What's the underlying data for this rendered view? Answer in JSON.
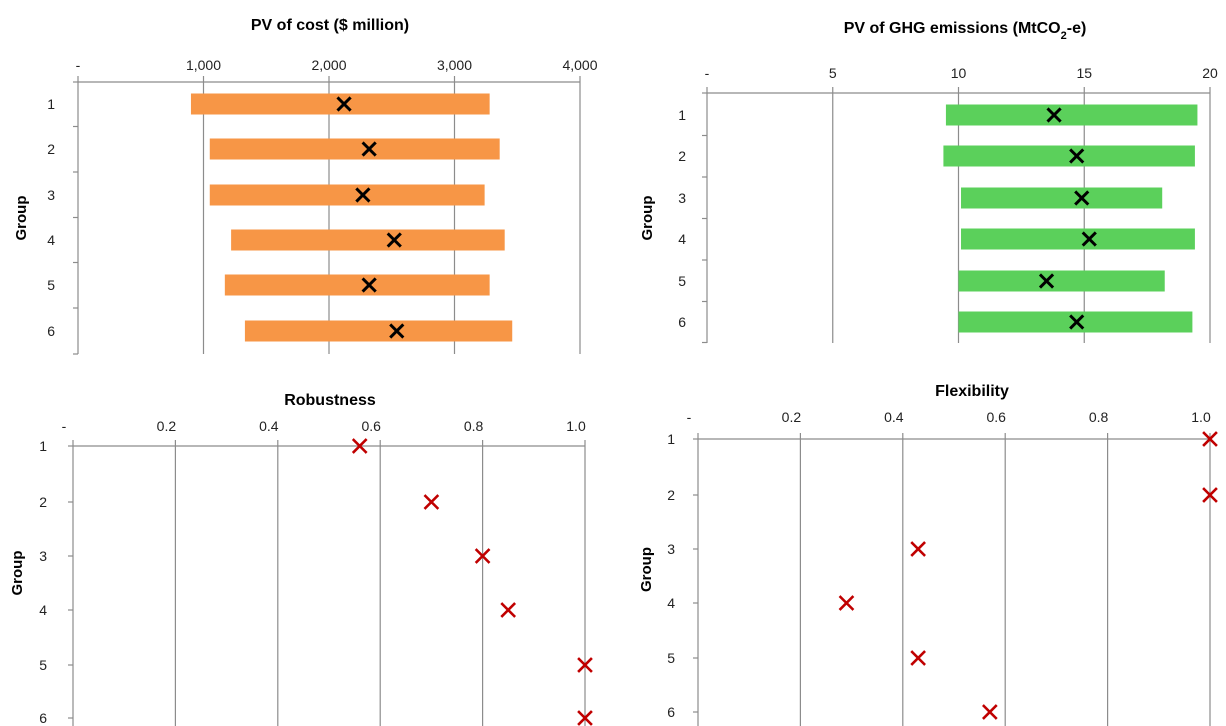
{
  "chart_data": [
    {
      "type": "bar",
      "variant": "range-bar-with-marker",
      "title": "PV of cost ($ million)",
      "title_sub": "",
      "ylabel": "Group",
      "categories": [
        "1",
        "2",
        "3",
        "4",
        "5",
        "6"
      ],
      "x_ticks": [
        "-",
        "1,000",
        "2,000",
        "3,000",
        "4,000"
      ],
      "xlim": [
        0,
        4000
      ],
      "bar_color": "#f79646",
      "marker_color": "#000000",
      "range_low": [
        900,
        1050,
        1050,
        1220,
        1170,
        1330
      ],
      "range_high": [
        3280,
        3360,
        3240,
        3400,
        3280,
        3460
      ],
      "marker": [
        2120,
        2320,
        2270,
        2520,
        2320,
        2540
      ],
      "grid": true
    },
    {
      "type": "bar",
      "variant": "range-bar-with-marker",
      "title": "PV of GHG emissions  (MtCO",
      "title_sub": "2",
      "title_tail": "-e)",
      "ylabel": "Group",
      "categories": [
        "1",
        "2",
        "3",
        "4",
        "5",
        "6"
      ],
      "x_ticks": [
        "-",
        "5",
        "10",
        "15",
        "20"
      ],
      "xlim": [
        0,
        20
      ],
      "bar_color": "#5bd05b",
      "marker_color": "#000000",
      "range_low": [
        9.5,
        9.4,
        10.1,
        10.1,
        10.0,
        10.0
      ],
      "range_high": [
        19.5,
        19.4,
        18.1,
        19.4,
        18.2,
        19.3
      ],
      "marker": [
        13.8,
        14.7,
        14.9,
        15.2,
        13.5,
        14.7
      ],
      "grid": true
    },
    {
      "type": "scatter",
      "title": "Robustness",
      "title_sub": "",
      "ylabel": "Group",
      "categories": [
        "1",
        "2",
        "3",
        "4",
        "5",
        "6"
      ],
      "x_ticks": [
        "-",
        "0.2",
        "0.4",
        "0.6",
        "0.8",
        "1.0"
      ],
      "xlim": [
        0,
        1.0
      ],
      "marker_color": "#c00000",
      "values": [
        0.56,
        0.7,
        0.8,
        0.85,
        1.0,
        1.0
      ],
      "grid": true
    },
    {
      "type": "scatter",
      "title": "Flexibility",
      "title_sub": "",
      "ylabel": "Group",
      "categories": [
        "1",
        "2",
        "3",
        "4",
        "5",
        "6"
      ],
      "x_ticks": [
        "-",
        "0.2",
        "0.4",
        "0.6",
        "0.8",
        "1.0"
      ],
      "xlim": [
        0,
        1.0
      ],
      "marker_color": "#c00000",
      "values": [
        1.0,
        1.0,
        0.43,
        0.29,
        0.43,
        0.57
      ],
      "grid": true
    }
  ]
}
